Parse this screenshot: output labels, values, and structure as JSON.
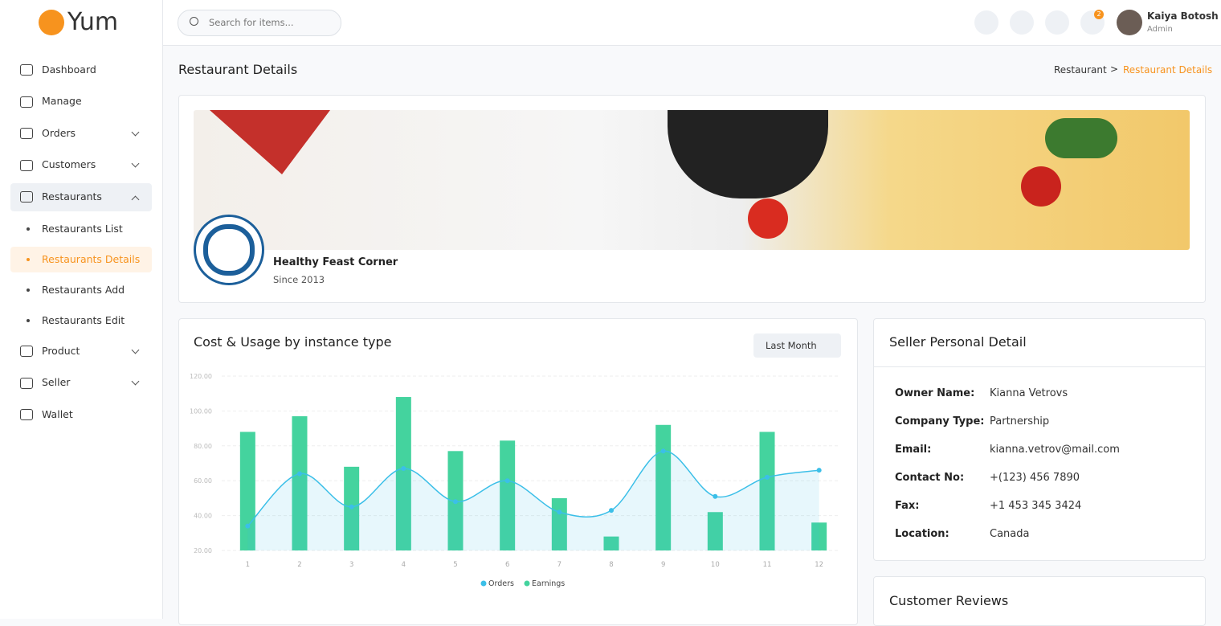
{
  "brand": "Yum",
  "search_placeholder": "Search for items...",
  "user": {
    "name": "Kaiya Botosh",
    "role": "Admin",
    "notifications": 2
  },
  "sidebar": {
    "items": [
      "Dashboard",
      "Manage",
      "Orders",
      "Customers",
      "Restaurants"
    ],
    "submenu": [
      "Restaurants List",
      "Restaurants Details",
      "Restaurants Add",
      "Restaurants Edit"
    ],
    "items_after": [
      "Product",
      "Seller",
      "Wallet"
    ]
  },
  "page_title": "Restaurant Details",
  "breadcrumb": [
    "Restaurant",
    "Restaurant Details"
  ],
  "restaurant": {
    "name": "Healthy Feast Corner",
    "since": "Since 2013"
  },
  "chart": {
    "type": "bar-line",
    "title": "Cost & Usage by instance type",
    "filter": "Last Month",
    "categories": [
      "1",
      "2",
      "3",
      "4",
      "5",
      "6",
      "7",
      "8",
      "9",
      "10",
      "11",
      "12"
    ],
    "series": [
      {
        "name": "Orders",
        "type": "line",
        "color": "#3bbfe8",
        "values": [
          34,
          64,
          45,
          67,
          48,
          60,
          42,
          43,
          77,
          51,
          62,
          66
        ]
      },
      {
        "name": "Earnings",
        "type": "bar",
        "color": "#44d39e",
        "values": [
          88,
          97,
          68,
          108,
          77,
          83,
          50,
          28,
          92,
          42,
          88,
          36
        ]
      }
    ],
    "ylim": [
      20,
      120
    ],
    "yticks": [
      {
        "value": 20,
        "label": "20.00"
      },
      {
        "value": 40,
        "label": "40.00"
      },
      {
        "value": 60,
        "label": "60.00"
      },
      {
        "value": 80,
        "label": "80.00"
      },
      {
        "value": 100,
        "label": "100.00"
      },
      {
        "value": 120,
        "label": "120.00"
      }
    ],
    "grid": true
  },
  "seller": {
    "title": "Seller Personal Detail",
    "fields": [
      {
        "label": "Owner Name:",
        "value": "Kianna Vetrovs"
      },
      {
        "label": "Company Type:",
        "value": "Partnership"
      },
      {
        "label": "Email:",
        "value": "kianna.vetrov@mail.com"
      },
      {
        "label": "Contact No:",
        "value": "+(123) 456 7890"
      },
      {
        "label": "Fax:",
        "value": "+1 453 345 3424"
      },
      {
        "label": "Location:",
        "value": "Canada"
      }
    ]
  },
  "reviews_title": "Customer Reviews"
}
